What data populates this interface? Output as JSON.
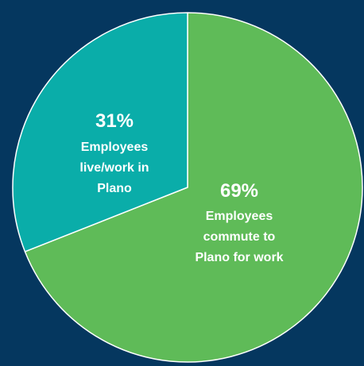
{
  "background": "#05375f",
  "chart_data": {
    "type": "pie",
    "slices": [
      {
        "value": 69,
        "percent_label": "69%",
        "label_lines": [
          "Employees",
          "commute to",
          "Plano for work"
        ],
        "color": "#5fbb58"
      },
      {
        "value": 31,
        "percent_label": "31%",
        "label_lines": [
          "Employees",
          "live/work in",
          "Plano"
        ],
        "color": "#0aada9"
      }
    ],
    "start_angle_deg": 0,
    "direction": "clockwise",
    "legend": "none",
    "edge_color": "#ffffff"
  }
}
